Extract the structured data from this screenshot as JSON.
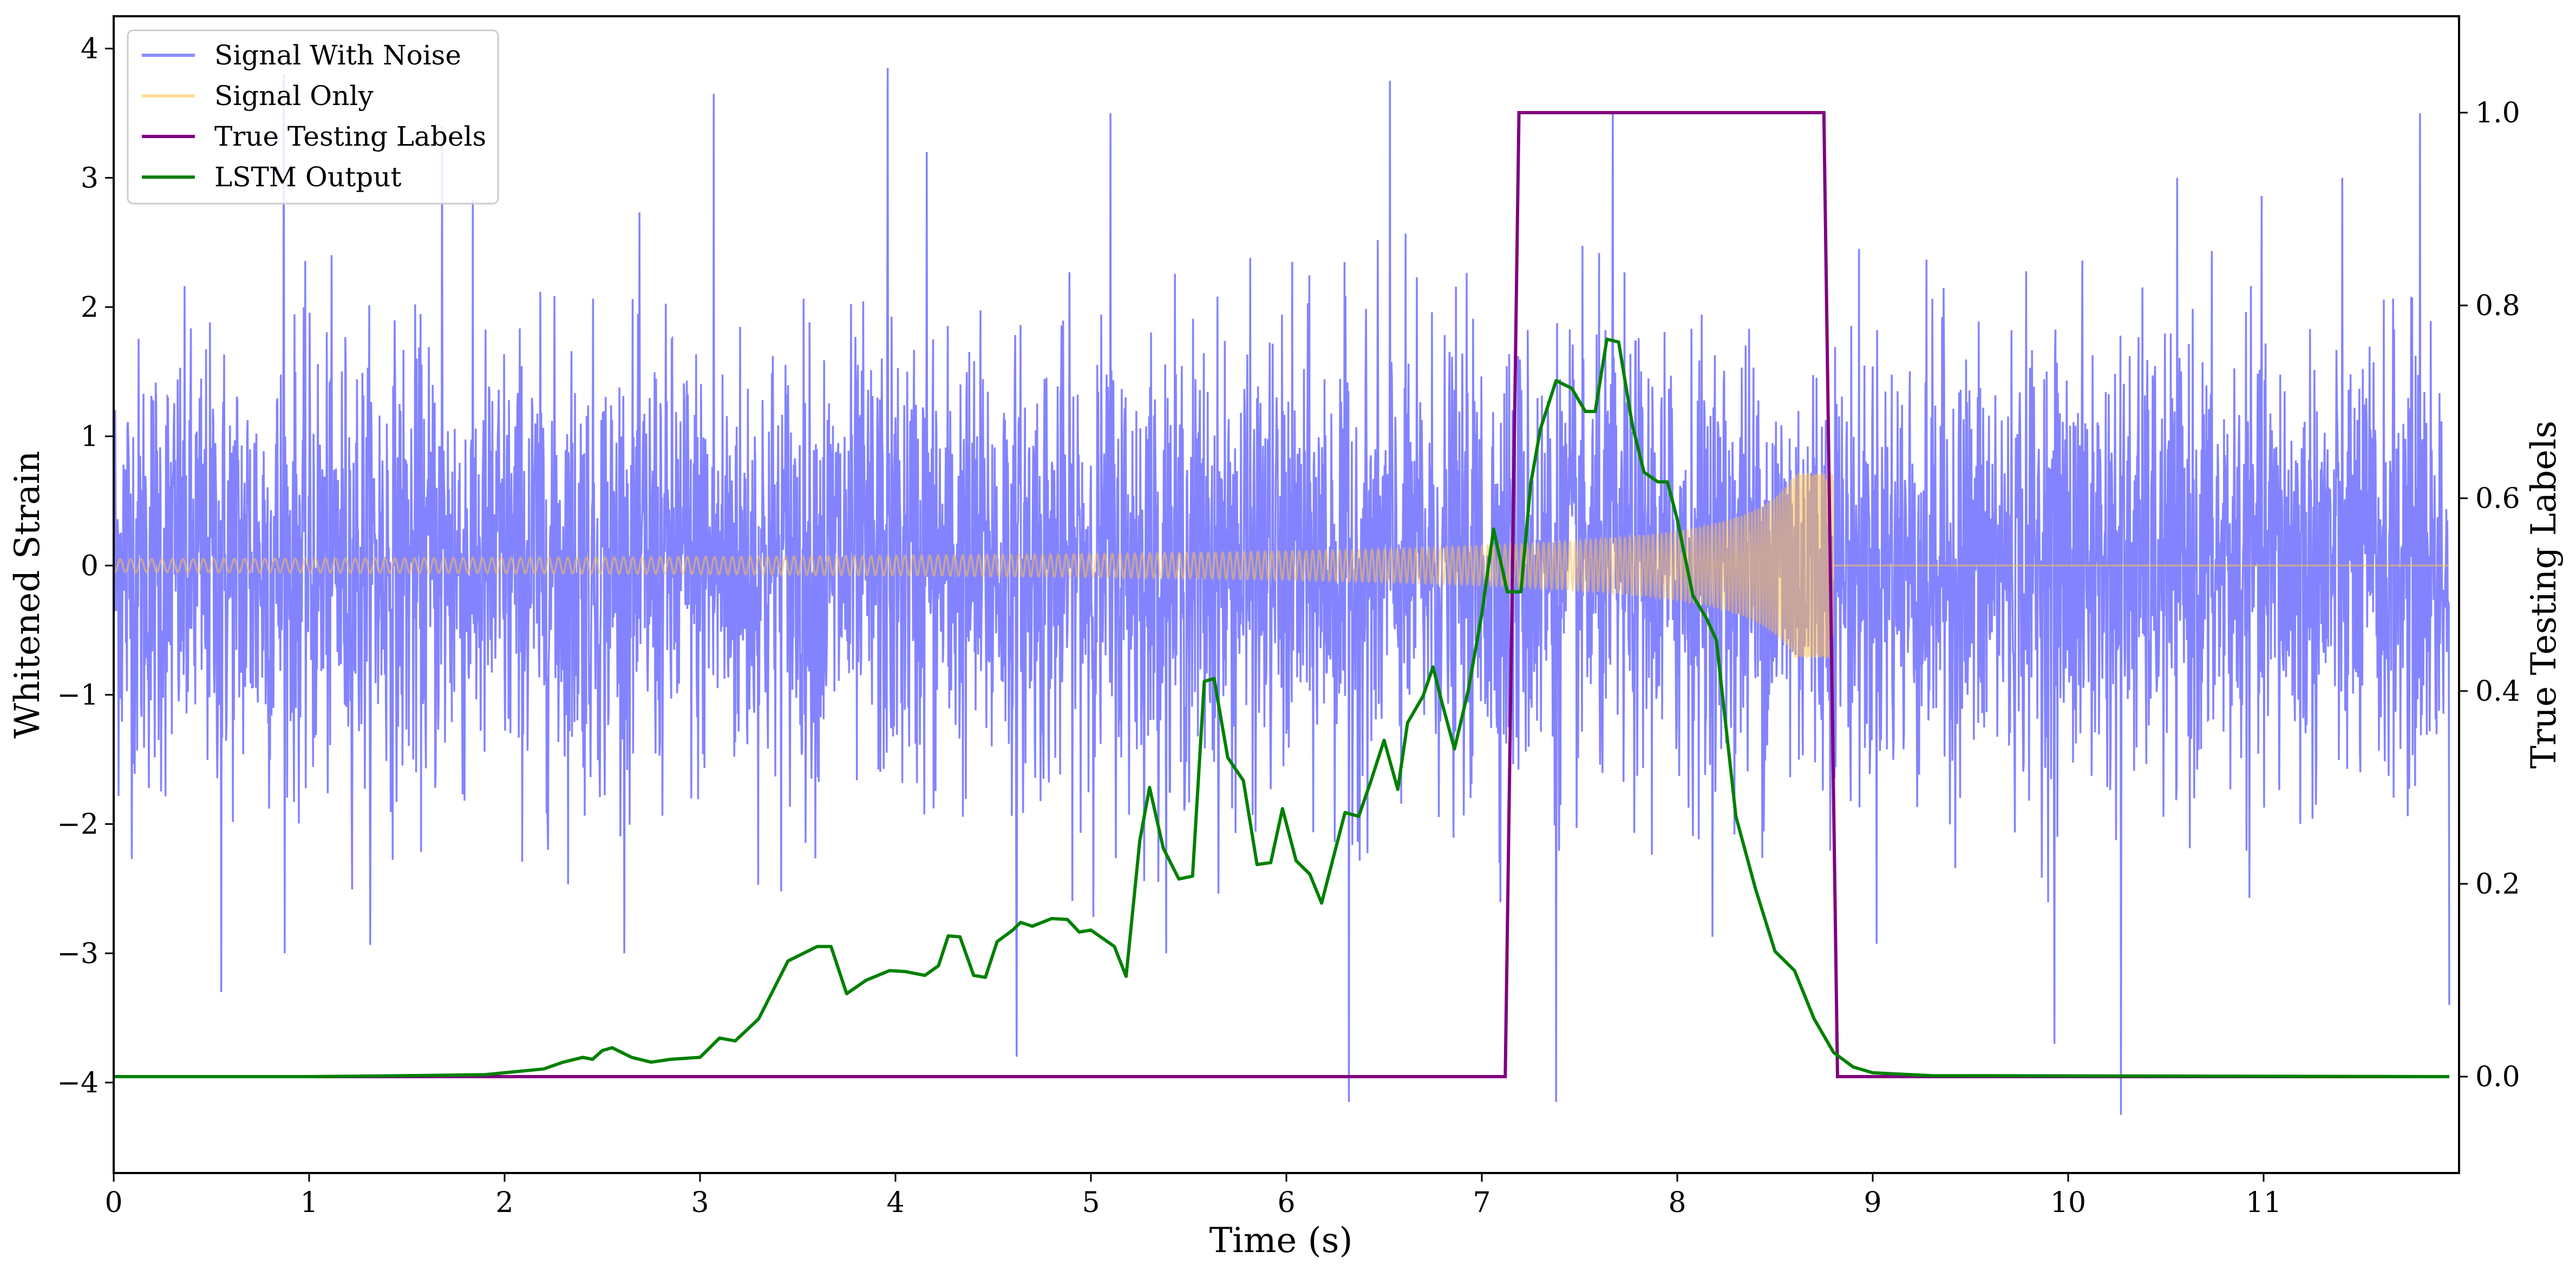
{
  "chart_data": {
    "type": "line",
    "xlabel": "Time (s)",
    "ylabel": "Whitened Strain",
    "ylabel_right": "True Testing Labels",
    "xlim": [
      0,
      12
    ],
    "ylim": [
      -4.7,
      4.25
    ],
    "ylim_right": [
      -0.1,
      1.1
    ],
    "x_ticks": [
      "0",
      "1",
      "2",
      "3",
      "4",
      "5",
      "6",
      "7",
      "8",
      "9",
      "10",
      "11"
    ],
    "y_ticks": [
      "−4",
      "−3",
      "−2",
      "−1",
      "0",
      "1",
      "2",
      "3",
      "4"
    ],
    "y_ticks_right": [
      "0.0",
      "0.2",
      "0.4",
      "0.6",
      "0.8",
      "1.0"
    ],
    "grid": false,
    "legend_position": "top-left",
    "series": [
      {
        "name": "Signal With Noise",
        "color": "#7f7fff",
        "axis": "left",
        "style": "dense noise",
        "sample_rate_hz": 400,
        "typical_range": [
          -2.2,
          2.3
        ],
        "peaks": [
          {
            "x": 0.55,
            "y": -3.3
          },
          {
            "x": 0.87,
            "y": 3.8
          },
          {
            "x": 1.68,
            "y": 3.4
          },
          {
            "x": 3.07,
            "y": 3.65
          },
          {
            "x": 3.96,
            "y": 3.85
          },
          {
            "x": 4.16,
            "y": 3.2
          },
          {
            "x": 4.62,
            "y": -3.8
          },
          {
            "x": 5.1,
            "y": 3.5
          },
          {
            "x": 6.32,
            "y": -4.15
          },
          {
            "x": 6.53,
            "y": 3.75
          },
          {
            "x": 7.38,
            "y": -4.15
          },
          {
            "x": 7.67,
            "y": 3.5
          },
          {
            "x": 9.93,
            "y": -3.7
          },
          {
            "x": 10.27,
            "y": -4.25
          },
          {
            "x": 11.8,
            "y": 3.5
          },
          {
            "x": 11.95,
            "y": -3.4
          }
        ]
      },
      {
        "name": "Signal Only",
        "color": "#ffc04d",
        "axis": "left",
        "style": "chirp",
        "start": 0.0,
        "merger_time": 8.8,
        "peak_amplitude": 0.72,
        "initial_amplitude": 0.05
      },
      {
        "name": "True Testing Labels",
        "color": "#800080",
        "axis": "right",
        "points": [
          [
            0.0,
            0.0
          ],
          [
            7.12,
            0.0
          ],
          [
            7.19,
            1.0
          ],
          [
            8.75,
            1.0
          ],
          [
            8.82,
            0.0
          ],
          [
            11.95,
            0.0
          ]
        ]
      },
      {
        "name": "LSTM Output",
        "color": "#008000",
        "axis": "right",
        "points": [
          [
            0.0,
            0.0
          ],
          [
            1.0,
            0.0
          ],
          [
            1.5,
            0.001
          ],
          [
            1.9,
            0.002
          ],
          [
            2.2,
            0.008
          ],
          [
            2.3,
            0.015
          ],
          [
            2.4,
            0.02
          ],
          [
            2.45,
            0.018
          ],
          [
            2.5,
            0.027
          ],
          [
            2.55,
            0.03
          ],
          [
            2.65,
            0.02
          ],
          [
            2.75,
            0.015
          ],
          [
            2.85,
            0.018
          ],
          [
            3.0,
            0.02
          ],
          [
            3.1,
            0.04
          ],
          [
            3.18,
            0.037
          ],
          [
            3.3,
            0.06
          ],
          [
            3.45,
            0.12
          ],
          [
            3.6,
            0.135
          ],
          [
            3.67,
            0.135
          ],
          [
            3.75,
            0.086
          ],
          [
            3.85,
            0.1
          ],
          [
            3.97,
            0.11
          ],
          [
            4.05,
            0.109
          ],
          [
            4.15,
            0.105
          ],
          [
            4.22,
            0.115
          ],
          [
            4.27,
            0.146
          ],
          [
            4.33,
            0.145
          ],
          [
            4.4,
            0.105
          ],
          [
            4.46,
            0.103
          ],
          [
            4.52,
            0.14
          ],
          [
            4.6,
            0.152
          ],
          [
            4.64,
            0.16
          ],
          [
            4.7,
            0.156
          ],
          [
            4.8,
            0.164
          ],
          [
            4.88,
            0.163
          ],
          [
            4.94,
            0.15
          ],
          [
            5.0,
            0.152
          ],
          [
            5.12,
            0.135
          ],
          [
            5.18,
            0.104
          ],
          [
            5.25,
            0.245
          ],
          [
            5.3,
            0.3
          ],
          [
            5.37,
            0.237
          ],
          [
            5.45,
            0.205
          ],
          [
            5.52,
            0.208
          ],
          [
            5.58,
            0.41
          ],
          [
            5.63,
            0.413
          ],
          [
            5.7,
            0.331
          ],
          [
            5.78,
            0.307
          ],
          [
            5.85,
            0.22
          ],
          [
            5.92,
            0.222
          ],
          [
            5.98,
            0.278
          ],
          [
            6.05,
            0.224
          ],
          [
            6.12,
            0.21
          ],
          [
            6.18,
            0.18
          ],
          [
            6.3,
            0.274
          ],
          [
            6.37,
            0.27
          ],
          [
            6.43,
            0.305
          ],
          [
            6.5,
            0.349
          ],
          [
            6.57,
            0.298
          ],
          [
            6.62,
            0.367
          ],
          [
            6.7,
            0.395
          ],
          [
            6.75,
            0.425
          ],
          [
            6.8,
            0.385
          ],
          [
            6.86,
            0.34
          ],
          [
            6.93,
            0.4
          ],
          [
            7.0,
            0.48
          ],
          [
            7.06,
            0.568
          ],
          [
            7.13,
            0.503
          ],
          [
            7.2,
            0.503
          ],
          [
            7.25,
            0.615
          ],
          [
            7.3,
            0.672
          ],
          [
            7.38,
            0.722
          ],
          [
            7.46,
            0.714
          ],
          [
            7.53,
            0.69
          ],
          [
            7.58,
            0.69
          ],
          [
            7.64,
            0.765
          ],
          [
            7.7,
            0.762
          ],
          [
            7.77,
            0.676
          ],
          [
            7.83,
            0.627
          ],
          [
            7.9,
            0.617
          ],
          [
            7.95,
            0.617
          ],
          [
            8.0,
            0.578
          ],
          [
            8.08,
            0.499
          ],
          [
            8.15,
            0.475
          ],
          [
            8.2,
            0.453
          ],
          [
            8.3,
            0.27
          ],
          [
            8.4,
            0.195
          ],
          [
            8.5,
            0.13
          ],
          [
            8.6,
            0.11
          ],
          [
            8.7,
            0.06
          ],
          [
            8.8,
            0.025
          ],
          [
            8.9,
            0.01
          ],
          [
            9.0,
            0.004
          ],
          [
            9.3,
            0.001
          ],
          [
            11.95,
            0.0
          ]
        ]
      }
    ]
  }
}
